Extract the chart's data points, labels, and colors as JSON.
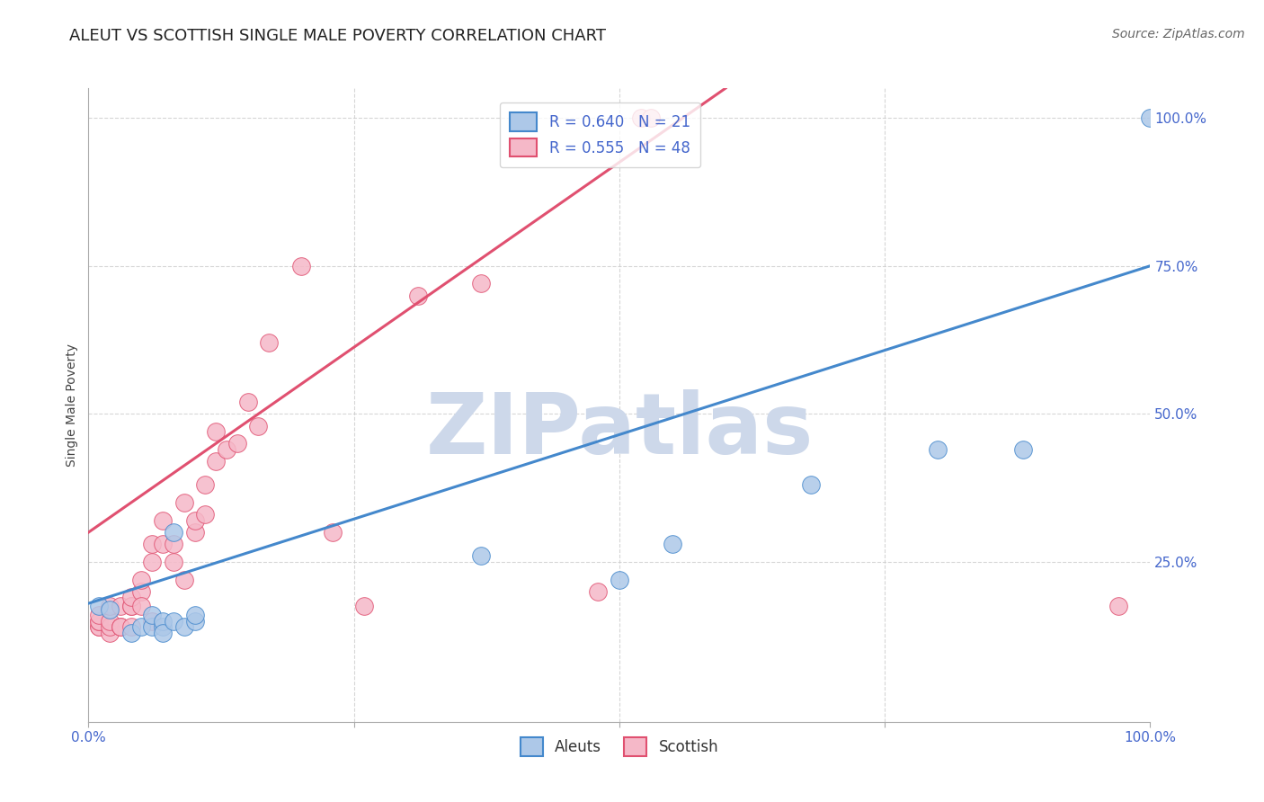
{
  "title": "ALEUT VS SCOTTISH SINGLE MALE POVERTY CORRELATION CHART",
  "source": "Source: ZipAtlas.com",
  "ylabel": "Single Male Poverty",
  "xlim": [
    0,
    1
  ],
  "ylim": [
    -0.02,
    1.05
  ],
  "ytick_positions": [
    0.25,
    0.5,
    0.75,
    1.0
  ],
  "yticklabels": [
    "25.0%",
    "50.0%",
    "75.0%",
    "100.0%"
  ],
  "aleut_R": 0.64,
  "aleut_N": 21,
  "scottish_R": 0.555,
  "scottish_N": 48,
  "aleut_color": "#adc8e8",
  "scottish_color": "#f5b8c8",
  "aleut_line_color": "#4488cc",
  "scottish_line_color": "#e05070",
  "legend_text_color": "#4466cc",
  "watermark": "ZIPatlas",
  "watermark_color": "#cdd8ea",
  "aleut_line_x0": 0.0,
  "aleut_line_y0": 0.18,
  "aleut_line_x1": 1.0,
  "aleut_line_y1": 0.75,
  "scottish_line_x0": 0.0,
  "scottish_line_y0": 0.3,
  "scottish_line_x1": 0.6,
  "scottish_line_y1": 1.05,
  "aleut_x": [
    0.01,
    0.02,
    0.04,
    0.05,
    0.06,
    0.06,
    0.07,
    0.07,
    0.07,
    0.08,
    0.08,
    0.09,
    0.1,
    0.1,
    0.37,
    0.5,
    0.55,
    0.68,
    0.8,
    0.88,
    1.0
  ],
  "aleut_y": [
    0.175,
    0.17,
    0.13,
    0.14,
    0.14,
    0.16,
    0.14,
    0.15,
    0.13,
    0.15,
    0.3,
    0.14,
    0.15,
    0.16,
    0.26,
    0.22,
    0.28,
    0.38,
    0.44,
    0.44,
    1.0
  ],
  "scottish_x": [
    0.01,
    0.01,
    0.01,
    0.01,
    0.01,
    0.02,
    0.02,
    0.02,
    0.02,
    0.03,
    0.03,
    0.03,
    0.04,
    0.04,
    0.04,
    0.04,
    0.05,
    0.05,
    0.05,
    0.06,
    0.06,
    0.06,
    0.07,
    0.07,
    0.08,
    0.08,
    0.09,
    0.09,
    0.1,
    0.1,
    0.11,
    0.11,
    0.12,
    0.12,
    0.13,
    0.14,
    0.15,
    0.16,
    0.17,
    0.2,
    0.23,
    0.26,
    0.31,
    0.37,
    0.48,
    0.52,
    0.53,
    0.97
  ],
  "scottish_y": [
    0.14,
    0.14,
    0.15,
    0.15,
    0.16,
    0.13,
    0.14,
    0.15,
    0.175,
    0.14,
    0.14,
    0.175,
    0.14,
    0.175,
    0.175,
    0.19,
    0.2,
    0.22,
    0.175,
    0.15,
    0.25,
    0.28,
    0.28,
    0.32,
    0.25,
    0.28,
    0.22,
    0.35,
    0.3,
    0.32,
    0.33,
    0.38,
    0.42,
    0.47,
    0.44,
    0.45,
    0.52,
    0.48,
    0.62,
    0.75,
    0.3,
    0.175,
    0.7,
    0.72,
    0.2,
    1.0,
    1.0,
    0.175
  ],
  "background_color": "#ffffff",
  "grid_color": "#cccccc",
  "title_fontsize": 13,
  "axis_label_fontsize": 10,
  "tick_fontsize": 11,
  "legend_fontsize": 12
}
